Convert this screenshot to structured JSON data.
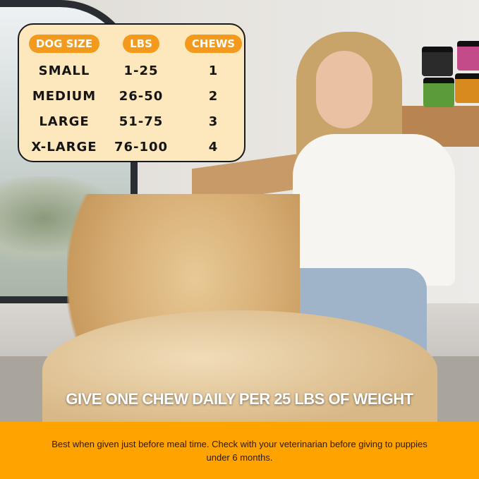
{
  "table": {
    "headers": [
      "DOG SIZE",
      "LBS",
      "CHEWS"
    ],
    "rows": [
      [
        "SMALL",
        "1-25",
        "1"
      ],
      [
        "MEDIUM",
        "26-50",
        "2"
      ],
      [
        "LARGE",
        "51-75",
        "3"
      ],
      [
        "X-LARGE",
        "76-100",
        "4"
      ]
    ]
  },
  "headline": "GIVE ONE CHEW DAILY PER 25 LBS OF WEIGHT",
  "footer_note": "Best when given just before meal time. Check with your veterinarian before giving to puppies under 6 months.",
  "colors": {
    "accent": "#f39a1c",
    "band": "#ffa300",
    "card": "#fde7bd"
  }
}
